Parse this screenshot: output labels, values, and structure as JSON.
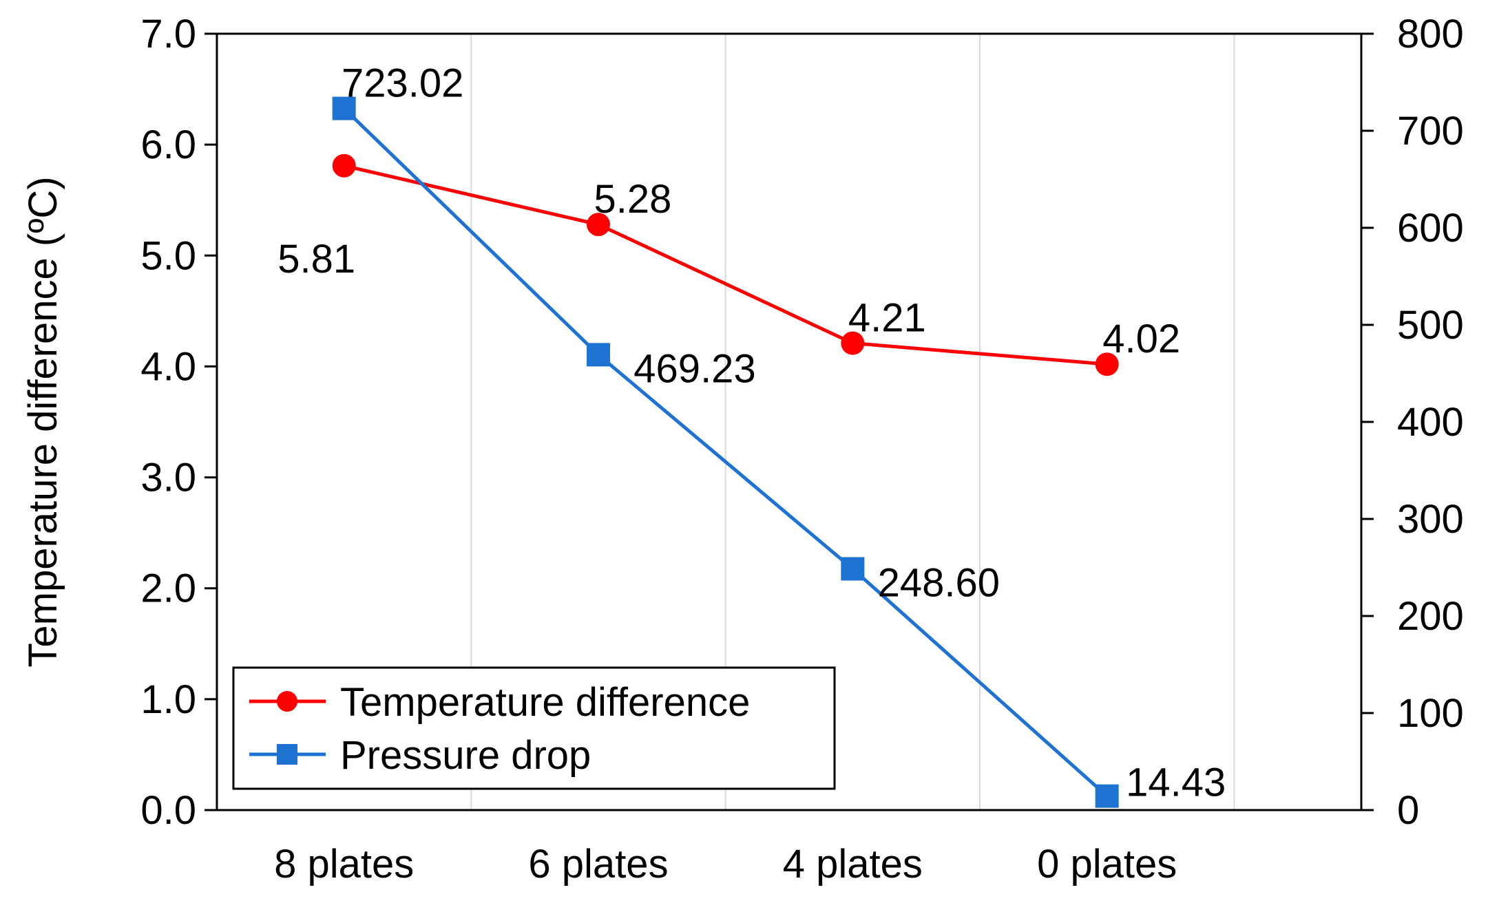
{
  "chart_data": {
    "type": "line",
    "title": "",
    "xlabel": "",
    "ylabel": "Temperature difference (ºC)",
    "y2label": "",
    "categories": [
      "8 plates",
      "6 plates",
      "4 plates",
      "0 plates"
    ],
    "ylim": [
      0,
      7
    ],
    "y2lim": [
      0,
      800
    ],
    "yticks": [
      "0.0",
      "1.0",
      "2.0",
      "3.0",
      "4.0",
      "5.0",
      "6.0",
      "7.0"
    ],
    "y2ticks": [
      "0",
      "100",
      "200",
      "300",
      "400",
      "500",
      "600",
      "700",
      "800"
    ],
    "grid": "vertical",
    "legend_position": "bottom-left",
    "series": [
      {
        "name": "Temperature difference",
        "axis": "left",
        "color": "#ff0000",
        "marker": "circle",
        "values": [
          5.81,
          5.28,
          4.21,
          4.02
        ],
        "labels": [
          "5.81",
          "5.28",
          "4.21",
          "4.02"
        ]
      },
      {
        "name": "Pressure drop",
        "axis": "right",
        "color": "#1e73d2",
        "marker": "square",
        "values": [
          723.02,
          469.23,
          248.6,
          14.43
        ],
        "labels": [
          "723.02",
          "469.23",
          "248.60",
          "14.43"
        ]
      }
    ]
  }
}
